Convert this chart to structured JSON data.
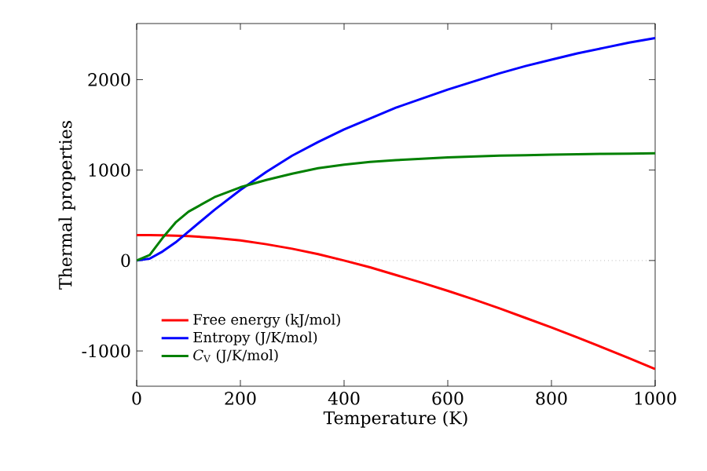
{
  "chart_data": {
    "type": "line",
    "xlabel": "Temperature (K)",
    "ylabel": "Thermal properties",
    "x": [
      0,
      25,
      50,
      75,
      100,
      150,
      200,
      250,
      300,
      350,
      400,
      450,
      500,
      550,
      600,
      650,
      700,
      750,
      800,
      850,
      900,
      950,
      1000
    ],
    "series": [
      {
        "name": "Free energy (kJ/mol)",
        "color": "#ff0000",
        "values": [
          280,
          280,
          278,
          275,
          270,
          250,
          222,
          180,
          130,
          70,
          0,
          -75,
          -160,
          -245,
          -335,
          -430,
          -530,
          -635,
          -740,
          -850,
          -965,
          -1080,
          -1200
        ]
      },
      {
        "name": "Entropy (J/K/mol)",
        "color": "#0000ff",
        "values": [
          0,
          20,
          100,
          200,
          320,
          560,
          780,
          980,
          1160,
          1310,
          1450,
          1570,
          1690,
          1790,
          1890,
          1980,
          2070,
          2150,
          2220,
          2290,
          2350,
          2410,
          2460
        ]
      },
      {
        "name": "*C*$_{V}$ (J/K/mol)",
        "color": "#008000",
        "values": [
          0,
          60,
          250,
          420,
          540,
          700,
          810,
          890,
          960,
          1020,
          1060,
          1090,
          1110,
          1125,
          1140,
          1150,
          1160,
          1165,
          1170,
          1175,
          1180,
          1182,
          1185
        ]
      }
    ],
    "xlim": [
      0,
      1000
    ],
    "ylim": [
      -1390,
      2620
    ],
    "xticks": [
      0,
      200,
      400,
      600,
      800,
      1000
    ],
    "yticks": [
      -1000,
      0,
      1000,
      2000
    ],
    "ref_lines": [
      {
        "axis": "y",
        "value": 0,
        "color": "#808080",
        "line_style": "dotted"
      }
    ],
    "legend": "bottom left",
    "marker": "none",
    "line_style": "solid"
  }
}
